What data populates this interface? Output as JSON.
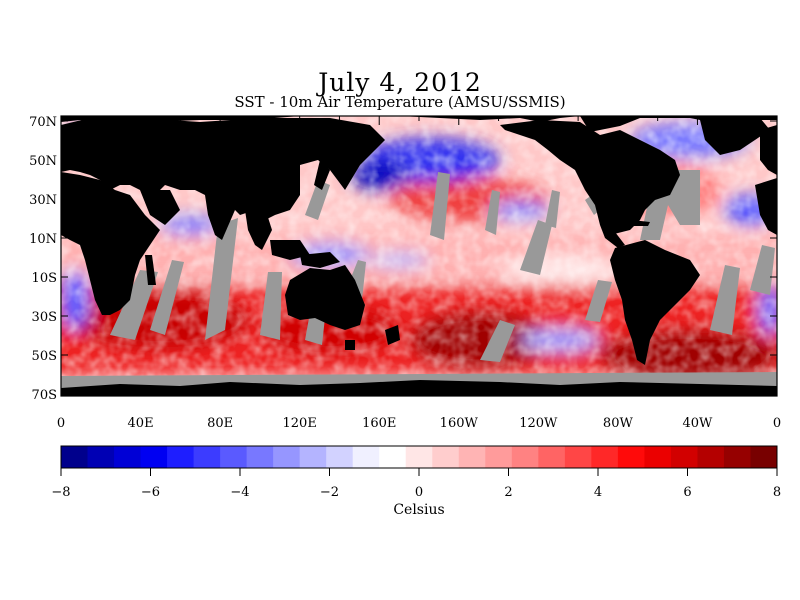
{
  "title": "July 4, 2012",
  "subtitle": "SST - 10m Air Temperature (AMSU/SSMIS)",
  "colors": {
    "land": "#000000",
    "missing": "#999999",
    "cold": "#0000a0",
    "neutral": "#ffffff",
    "warm": "#8b0000"
  },
  "map": {
    "lat_labels": [
      "70N",
      "50N",
      "30N",
      "10N",
      "10S",
      "30S",
      "50S",
      "70S"
    ],
    "lon_labels": [
      "0",
      "40E",
      "80E",
      "120E",
      "160E",
      "160W",
      "120W",
      "80W",
      "40W",
      "0"
    ]
  },
  "colorbar": {
    "min": -8,
    "max": 8,
    "tick_labels": [
      "−8",
      "−6",
      "−4",
      "−2",
      "0",
      "2",
      "4",
      "6",
      "8"
    ],
    "colors": [
      "#00008c",
      "#0000b4",
      "#0000d6",
      "#0000f2",
      "#1e1eff",
      "#3c3cff",
      "#5a5aff",
      "#7878ff",
      "#9696ff",
      "#b4b4ff",
      "#d2d2ff",
      "#f0f0ff",
      "#ffffff",
      "#ffe6e6",
      "#ffcdcd",
      "#ffb4b4",
      "#ff9b9b",
      "#ff8282",
      "#ff6464",
      "#ff4646",
      "#ff2828",
      "#ff0a0a",
      "#eb0000",
      "#d20000",
      "#b40000",
      "#960000",
      "#780000"
    ],
    "unit_label": "Celsius"
  }
}
